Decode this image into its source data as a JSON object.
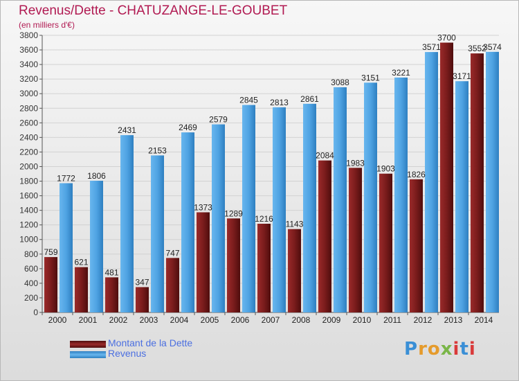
{
  "header": {
    "title": "Revenus/Dette - CHATUZANGE-LE-GOUBET",
    "subtitle": "(en milliers d'€)"
  },
  "legend": {
    "dette_label": "Montant de la Dette",
    "revenus_label": "Revenus"
  },
  "logo": {
    "text": "Proxiti"
  },
  "colors": {
    "dette": "#7a1c1c",
    "revenus": "#4fa3e3",
    "title": "#b11a52",
    "legend_text": "#4b6fe0"
  },
  "chart_data": {
    "type": "bar",
    "categories": [
      "2000",
      "2001",
      "2002",
      "2003",
      "2004",
      "2005",
      "2006",
      "2007",
      "2008",
      "2009",
      "2010",
      "2011",
      "2012",
      "2013",
      "2014"
    ],
    "series": [
      {
        "name": "Montant de la Dette",
        "values": [
          759,
          621,
          481,
          347,
          747,
          1373,
          1289,
          1216,
          1143,
          2084,
          1983,
          1903,
          1826,
          3700,
          3552
        ]
      },
      {
        "name": "Revenus",
        "values": [
          1772,
          1806,
          2431,
          2153,
          2469,
          2579,
          2845,
          2813,
          2861,
          3088,
          3151,
          3221,
          3571,
          3171,
          3574
        ]
      }
    ],
    "value_labels": {
      "Montant de la Dette": [
        "759",
        "621",
        "481",
        "347",
        "747",
        "1373",
        "1289",
        "1216",
        "1143",
        "2084",
        "1983",
        "1903",
        "1826",
        "3700",
        "3552"
      ],
      "Revenus": [
        "1772",
        "1806",
        "2431",
        "2153",
        "2469",
        "2579",
        "2845",
        "2813",
        "2861",
        "3088",
        "3151",
        "3221",
        "3571",
        "3171",
        "3574"
      ]
    },
    "title": "Revenus/Dette - CHATUZANGE-LE-GOUBET",
    "subtitle": "(en milliers d'€)",
    "ylim": [
      0,
      3800
    ],
    "y_ticks": [
      0,
      200,
      400,
      600,
      800,
      1000,
      1200,
      1400,
      1600,
      1800,
      2000,
      2200,
      2400,
      2600,
      2800,
      3000,
      3200,
      3400,
      3600,
      3800
    ],
    "grid": true,
    "legend_position": "bottom-left"
  }
}
